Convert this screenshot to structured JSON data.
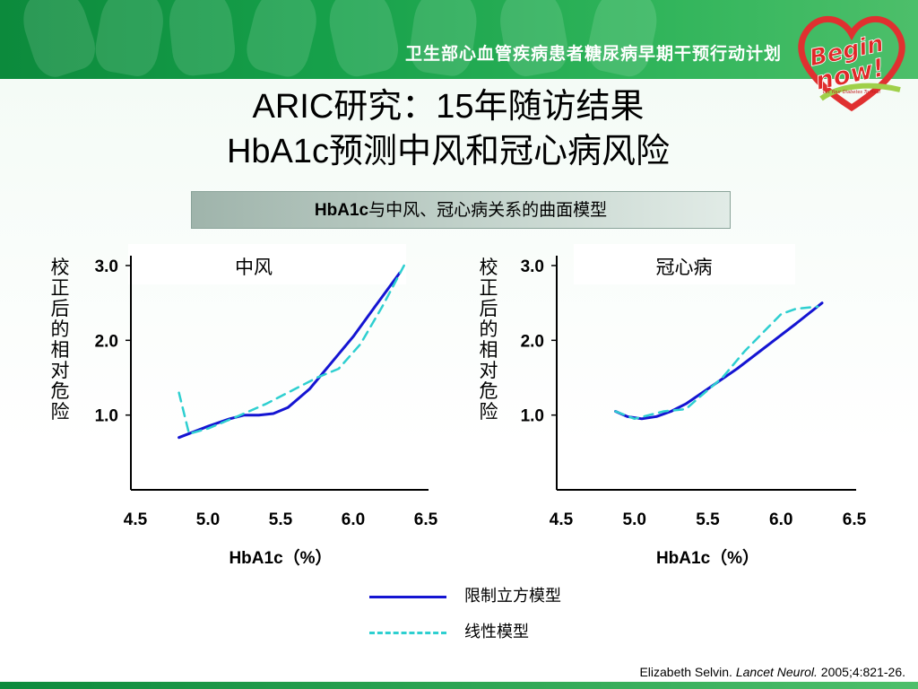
{
  "header": {
    "title": "卫生部心血管疾病患者糖尿病早期干预行动计划",
    "logo_text_top": "Begin",
    "logo_text_bottom": "now!",
    "logo_tagline": "Let Your Diabetes To Heal"
  },
  "title": {
    "line1": "ARIC研究：15年随访结果",
    "line2": "HbA1c预测中风和冠心病风险"
  },
  "subtitle": {
    "bold": "HbA1c",
    "rest": "与中风、冠心病关系的曲面模型"
  },
  "colors": {
    "spline": "#1414d2",
    "linear": "#2ecfd0",
    "header_green": "#16a04a"
  },
  "chart_data": [
    {
      "type": "line",
      "title": "中风",
      "ylabel": "校正后的相对危险",
      "xlabel": "HbA1c（%）",
      "x_ticks": [
        "4.5",
        "5.0",
        "5.5",
        "6.0",
        "6.5"
      ],
      "y_ticks": [
        "1.0",
        "2.0",
        "3.0"
      ],
      "xlim": [
        4.5,
        6.5
      ],
      "ylim": [
        0.0,
        3.0
      ],
      "series": [
        {
          "name": "限制立方模型",
          "style": "solid",
          "x": [
            4.8,
            5.0,
            5.15,
            5.25,
            5.35,
            5.45,
            5.55,
            5.7,
            5.85,
            6.0,
            6.15,
            6.32
          ],
          "y": [
            0.7,
            0.85,
            0.95,
            1.0,
            1.0,
            1.02,
            1.1,
            1.35,
            1.7,
            2.05,
            2.45,
            2.9
          ]
        },
        {
          "name": "线性模型",
          "style": "dashed",
          "x": [
            4.8,
            4.87,
            5.0,
            5.2,
            5.4,
            5.6,
            5.75,
            5.9,
            6.05,
            6.2,
            6.35
          ],
          "y": [
            1.3,
            0.75,
            0.82,
            0.98,
            1.15,
            1.35,
            1.5,
            1.62,
            1.95,
            2.45,
            3.0
          ]
        }
      ]
    },
    {
      "type": "line",
      "title": "冠心病",
      "ylabel": "校正后的相对危险",
      "xlabel": "HbA1c（%）",
      "x_ticks": [
        "4.5",
        "5.0",
        "5.5",
        "6.0",
        "6.5"
      ],
      "y_ticks": [
        "1.0",
        "2.0",
        "3.0"
      ],
      "xlim": [
        4.5,
        6.5
      ],
      "ylim": [
        0.0,
        3.0
      ],
      "series": [
        {
          "name": "限制立方模型",
          "style": "solid",
          "x": [
            4.87,
            4.95,
            5.05,
            5.15,
            5.25,
            5.35,
            5.5,
            5.7,
            5.9,
            6.1,
            6.28
          ],
          "y": [
            1.05,
            0.98,
            0.95,
            0.98,
            1.05,
            1.15,
            1.35,
            1.62,
            1.92,
            2.22,
            2.5
          ]
        },
        {
          "name": "线性模型",
          "style": "dashed",
          "x": [
            4.87,
            5.0,
            5.2,
            5.35,
            5.45,
            5.6,
            5.75,
            5.9,
            6.0,
            6.1,
            6.25
          ],
          "y": [
            1.05,
            0.95,
            1.05,
            1.08,
            1.25,
            1.5,
            1.85,
            2.15,
            2.35,
            2.42,
            2.45
          ]
        }
      ]
    }
  ],
  "legend": {
    "items": [
      {
        "label": "限制立方模型",
        "style": "solid"
      },
      {
        "label": "线性模型",
        "style": "dashed"
      }
    ]
  },
  "citation": {
    "authors": "Elizabeth Selvin. ",
    "journal": "Lancet Neurol.",
    "details": " 2005;4:821-26."
  }
}
